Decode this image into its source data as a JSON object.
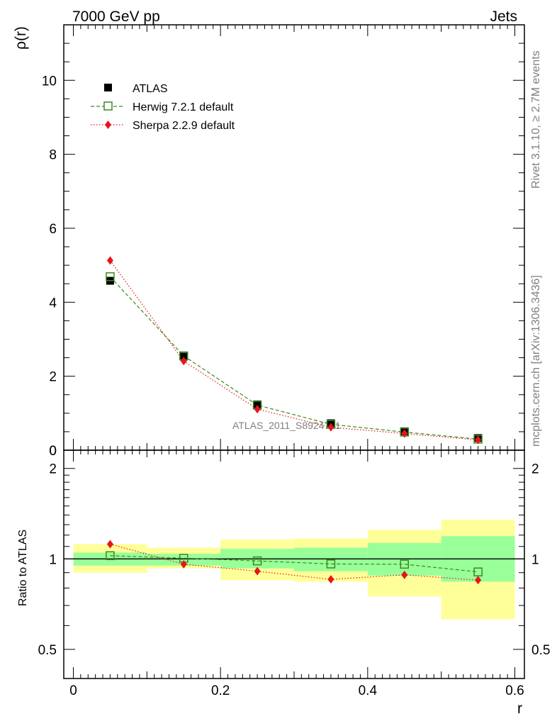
{
  "header": {
    "left": "7000 GeV pp",
    "right": "Jets"
  },
  "side_labels": {
    "rivet": "Rivet 3.1.10, ≥ 2.7M events",
    "mcplots": "mcplots.cern.ch [arXiv:1306.3436]"
  },
  "watermark": "ATLAS_2011_S8924791",
  "colors": {
    "atlas": "#000000",
    "herwig": "#3a8a1e",
    "sherpa": "#e8141a",
    "band_inner": "#99ff99",
    "band_outer": "#ffff99"
  },
  "chart_data": [
    {
      "type": "scatter",
      "panel": "main",
      "ylabel": "ρ(r)",
      "xlabel": "r",
      "xlim": [
        -0.013,
        0.613
      ],
      "ylim": [
        0,
        11.5
      ],
      "yticks": [
        0,
        2,
        4,
        6,
        8,
        10
      ],
      "x": [
        0.05,
        0.15,
        0.25,
        0.35,
        0.45,
        0.55
      ],
      "legend_position": "top-left",
      "series": [
        {
          "name": "ATLAS",
          "marker": "filled-square",
          "values": [
            4.58,
            2.53,
            1.24,
            0.73,
            0.51,
            0.33
          ]
        },
        {
          "name": "Herwig 7.2.1 default",
          "marker": "open-square",
          "line": "dashed",
          "values": [
            4.69,
            2.55,
            1.22,
            0.7,
            0.49,
            0.3
          ]
        },
        {
          "name": "Sherpa 2.2.9 default",
          "marker": "diamond",
          "line": "dotted",
          "values": [
            5.13,
            2.41,
            1.11,
            0.62,
            0.45,
            0.28
          ]
        }
      ]
    },
    {
      "type": "line",
      "panel": "ratio",
      "ylabel": "Ratio to ATLAS",
      "xlabel": "r",
      "xlim": [
        -0.013,
        0.613
      ],
      "ylim": [
        0.4,
        2.3
      ],
      "yscale": "log",
      "yticks": [
        0.5,
        1,
        2
      ],
      "ytick_labels": [
        "0.5",
        "1",
        "2"
      ],
      "xticks": [
        0,
        0.2,
        0.4,
        0.6
      ],
      "xtick_labels": [
        "0",
        "0.2",
        "0.4",
        "0.6"
      ],
      "reference_line": 1,
      "bins": [
        [
          0,
          0.1
        ],
        [
          0.1,
          0.2
        ],
        [
          0.2,
          0.3
        ],
        [
          0.3,
          0.4
        ],
        [
          0.4,
          0.5
        ],
        [
          0.5,
          0.6
        ]
      ],
      "band_inner": [
        [
          0.95,
          1.05
        ],
        [
          0.95,
          1.04
        ],
        [
          0.93,
          1.08
        ],
        [
          0.91,
          1.09
        ],
        [
          0.88,
          1.13
        ],
        [
          0.84,
          1.19
        ]
      ],
      "band_outer": [
        [
          0.9,
          1.12
        ],
        [
          0.93,
          1.09
        ],
        [
          0.85,
          1.16
        ],
        [
          0.84,
          1.17
        ],
        [
          0.75,
          1.25
        ],
        [
          0.63,
          1.35
        ]
      ],
      "x": [
        0.05,
        0.15,
        0.25,
        0.35,
        0.45,
        0.55
      ],
      "series": [
        {
          "name": "Herwig 7.2.1 default",
          "values": [
            1.025,
            1.005,
            0.985,
            0.962,
            0.96,
            0.905
          ]
        },
        {
          "name": "Sherpa 2.2.9 default",
          "values": [
            1.12,
            0.96,
            0.91,
            0.855,
            0.885,
            0.85
          ]
        }
      ]
    }
  ]
}
